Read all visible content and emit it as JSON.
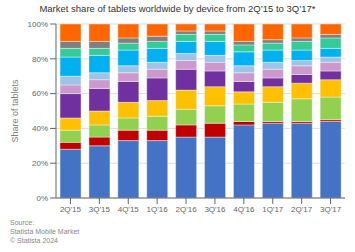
{
  "chart_data": {
    "type": "bar",
    "title": "Market share of tablets worldwide by device from 2Q’15 to 3Q’17*",
    "ylabel": "Share of tablets",
    "annotations": [
      "Source:\nStatista Mobile Market\n© Statista 2024"
    ],
    "categories": [
      "2Q'15",
      "3Q'15",
      "4Q'15",
      "1Q'16",
      "2Q'16",
      "3Q'16",
      "4Q'16",
      "1Q'17",
      "2Q'17",
      "3Q'17"
    ],
    "series": [
      {
        "color": "#4472c4",
        "values": [
          28,
          30,
          33,
          33,
          35,
          35,
          42,
          43,
          43,
          44
        ]
      },
      {
        "color": "#c00000",
        "values": [
          4,
          5,
          6,
          6,
          7,
          8,
          2,
          1,
          1,
          1
        ]
      },
      {
        "color": "#92d050",
        "values": [
          7,
          7,
          7,
          8,
          9,
          10,
          10,
          11,
          13,
          13
        ]
      },
      {
        "color": "#ffc000",
        "values": [
          7,
          8,
          9,
          9,
          11,
          11,
          7,
          9,
          9,
          10
        ]
      },
      {
        "color": "#7030a0",
        "values": [
          14,
          13,
          12,
          13,
          12,
          9,
          6,
          5,
          5,
          5
        ]
      },
      {
        "color": "#cc99cc",
        "values": [
          5,
          5,
          5,
          5,
          5,
          5,
          5,
          5,
          5,
          5
        ]
      },
      {
        "color": "#9dc3e6",
        "values": [
          5,
          4,
          4,
          4,
          4,
          4,
          4,
          4,
          3,
          3
        ]
      },
      {
        "color": "#00b0f0",
        "values": [
          11,
          10,
          9,
          8,
          7,
          8,
          8,
          7,
          6,
          5
        ]
      },
      {
        "color": "#33cc99",
        "values": [
          5,
          4,
          4,
          4,
          4,
          4,
          4,
          4,
          5,
          6
        ]
      },
      {
        "color": "#808080",
        "values": [
          4,
          4,
          3,
          3,
          2,
          2,
          2,
          2,
          2,
          2
        ]
      },
      {
        "color": "#ff6600",
        "values": [
          10,
          10,
          8,
          7,
          4,
          4,
          10,
          9,
          8,
          6
        ]
      }
    ],
    "stacked": true,
    "ylim": [
      0,
      100
    ],
    "yticks": [
      {
        "value": 0,
        "label": "0%"
      },
      {
        "value": 20,
        "label": "20%"
      },
      {
        "value": 40,
        "label": "40%"
      },
      {
        "value": 60,
        "label": "60%"
      },
      {
        "value": 80,
        "label": "80%"
      },
      {
        "value": 100,
        "label": "100%"
      }
    ],
    "grid": true
  }
}
